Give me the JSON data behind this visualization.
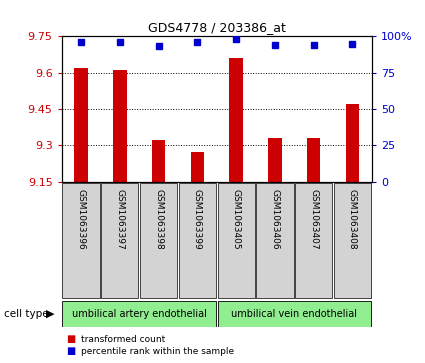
{
  "title": "GDS4778 / 203386_at",
  "samples": [
    "GSM1063396",
    "GSM1063397",
    "GSM1063398",
    "GSM1063399",
    "GSM1063405",
    "GSM1063406",
    "GSM1063407",
    "GSM1063408"
  ],
  "red_values": [
    9.62,
    9.61,
    9.32,
    9.27,
    9.66,
    9.33,
    9.33,
    9.47
  ],
  "blue_values": [
    96,
    96,
    93,
    96,
    98,
    94,
    94,
    95
  ],
  "ylim_left": [
    9.15,
    9.75
  ],
  "ylim_right": [
    0,
    100
  ],
  "yticks_left": [
    9.15,
    9.3,
    9.45,
    9.6,
    9.75
  ],
  "yticks_right": [
    0,
    25,
    50,
    75,
    100
  ],
  "ytick_labels_left": [
    "9.15",
    "9.3",
    "9.45",
    "9.6",
    "9.75"
  ],
  "ytick_labels_right": [
    "0",
    "25",
    "50",
    "75",
    "100%"
  ],
  "bar_color": "#cc0000",
  "dot_color": "#0000cc",
  "cell_type_groups": [
    {
      "label": "umbilical artery endothelial",
      "start": 0,
      "end": 3,
      "color": "#90ee90"
    },
    {
      "label": "umbilical vein endothelial",
      "start": 4,
      "end": 7,
      "color": "#90ee90"
    }
  ],
  "cell_type_label": "cell type",
  "legend_items": [
    {
      "label": "transformed count",
      "color": "#cc0000"
    },
    {
      "label": "percentile rank within the sample",
      "color": "#0000cc"
    }
  ],
  "bar_width": 0.35,
  "dot_size": 5,
  "tick_label_fontsize": 6.5,
  "axis_tick_fontsize": 8,
  "title_fontsize": 9
}
